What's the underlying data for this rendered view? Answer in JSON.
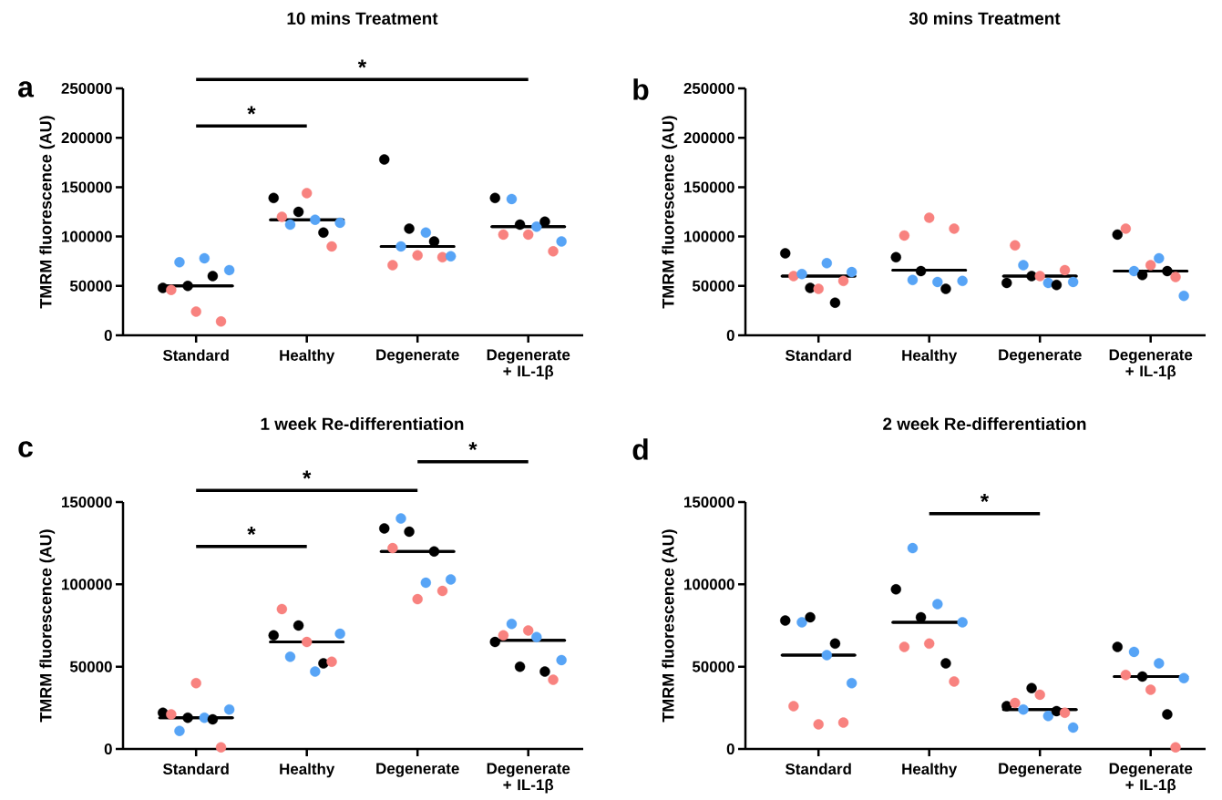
{
  "chart_data": [
    {
      "type": "scatter",
      "title": "10 mins Treatment",
      "ylabel": "TMRM fluorescence (AU)",
      "categories": [
        "Standard",
        "Healthy",
        "Degenerate",
        "Degenerate + IL-1β"
      ],
      "ylim": [
        0,
        250000
      ],
      "yticks": [
        0,
        50000,
        100000,
        150000,
        200000,
        250000
      ],
      "marker": "circle",
      "annotations": [
        "a",
        "*",
        "*"
      ],
      "series": [
        {
          "color": "#000000",
          "values": [
            48000,
            139000,
            178000,
            139000
          ]
        },
        {
          "color": "#f8827f",
          "values": [
            46000,
            120000,
            71000,
            102000
          ]
        },
        {
          "color": "#57a4f6",
          "values": [
            74000,
            112000,
            90000,
            138000
          ]
        },
        {
          "color": "#000000",
          "values": [
            50000,
            125000,
            108000,
            112000
          ]
        },
        {
          "color": "#f8827f",
          "values": [
            24000,
            144000,
            81000,
            102000
          ]
        },
        {
          "color": "#57a4f6",
          "values": [
            78000,
            117000,
            104000,
            110000
          ]
        },
        {
          "color": "#000000",
          "values": [
            60000,
            104000,
            95000,
            115000
          ]
        },
        {
          "color": "#f8827f",
          "values": [
            14000,
            90000,
            79000,
            85000
          ]
        },
        {
          "color": "#57a4f6",
          "values": [
            66000,
            114000,
            80000,
            95000
          ]
        },
        {
          "type": "box",
          "color": "#000000",
          "boxes": [
            {
              "low": 50000,
              "q1": 50000,
              "median": 50000,
              "q3": 50000,
              "high": 50000
            },
            {
              "low": 117000,
              "q1": 117000,
              "median": 117000,
              "q3": 117000,
              "high": 117000
            },
            {
              "low": 90000,
              "q1": 90000,
              "median": 90000,
              "q3": 90000,
              "high": 90000
            },
            {
              "low": 110000,
              "q1": 110000,
              "median": 110000,
              "q3": 110000,
              "high": 110000
            }
          ]
        }
      ]
    },
    {
      "type": "scatter",
      "title": "30 mins Treatment",
      "ylabel": "TMRM fluorescence (AU)",
      "categories": [
        "Standard",
        "Healthy",
        "Degenerate",
        "Degenerate + IL-1β"
      ],
      "ylim": [
        0,
        250000
      ],
      "yticks": [
        0,
        50000,
        100000,
        150000,
        200000,
        250000
      ],
      "marker": "circle",
      "annotations": [
        "b"
      ],
      "series": [
        {
          "color": "#000000",
          "values": [
            83000,
            79000,
            53000,
            102000
          ]
        },
        {
          "color": "#f8827f",
          "values": [
            60000,
            101000,
            91000,
            108000
          ]
        },
        {
          "color": "#57a4f6",
          "values": [
            62000,
            56000,
            71000,
            65000
          ]
        },
        {
          "color": "#000000",
          "values": [
            48000,
            65000,
            60000,
            61000
          ]
        },
        {
          "color": "#f8827f",
          "values": [
            47000,
            119000,
            60000,
            71000
          ]
        },
        {
          "color": "#57a4f6",
          "values": [
            73000,
            54000,
            53000,
            78000
          ]
        },
        {
          "color": "#000000",
          "values": [
            33000,
            47000,
            51000,
            65000
          ]
        },
        {
          "color": "#f8827f",
          "values": [
            55000,
            108000,
            66000,
            59000
          ]
        },
        {
          "color": "#57a4f6",
          "values": [
            64000,
            55000,
            54000,
            40000
          ]
        },
        {
          "type": "box",
          "color": "#000000",
          "boxes": [
            {
              "low": 60000,
              "q1": 60000,
              "median": 60000,
              "q3": 60000,
              "high": 60000
            },
            {
              "low": 66000,
              "q1": 66000,
              "median": 66000,
              "q3": 66000,
              "high": 66000
            },
            {
              "low": 60000,
              "q1": 60000,
              "median": 60000,
              "q3": 60000,
              "high": 60000
            },
            {
              "low": 65000,
              "q1": 65000,
              "median": 65000,
              "q3": 65000,
              "high": 65000
            }
          ]
        }
      ]
    },
    {
      "type": "scatter",
      "title": "1 week Re-differentiation",
      "ylabel": "TMRM fluorescence (AU)",
      "categories": [
        "Standard",
        "Healthy",
        "Degenerate",
        "Degenerate + IL-1β"
      ],
      "ylim": [
        0,
        150000
      ],
      "yticks": [
        0,
        50000,
        100000,
        150000
      ],
      "marker": "circle",
      "annotations": [
        "c",
        "*",
        "*",
        "*"
      ],
      "series": [
        {
          "color": "#000000",
          "values": [
            22000,
            69000,
            134000,
            65000
          ]
        },
        {
          "color": "#f8827f",
          "values": [
            21000,
            85000,
            122000,
            69000
          ]
        },
        {
          "color": "#57a4f6",
          "values": [
            11000,
            56000,
            140000,
            76000
          ]
        },
        {
          "color": "#000000",
          "values": [
            19000,
            75000,
            132000,
            50000
          ]
        },
        {
          "color": "#f8827f",
          "values": [
            40000,
            65000,
            91000,
            72000
          ]
        },
        {
          "color": "#57a4f6",
          "values": [
            19000,
            47000,
            101000,
            68000
          ]
        },
        {
          "color": "#000000",
          "values": [
            18000,
            52000,
            120000,
            47000
          ]
        },
        {
          "color": "#f8827f",
          "values": [
            1000,
            53000,
            96000,
            42000
          ]
        },
        {
          "color": "#57a4f6",
          "values": [
            24000,
            70000,
            103000,
            54000
          ]
        },
        {
          "type": "box",
          "color": "#000000",
          "boxes": [
            {
              "low": 19000,
              "q1": 19000,
              "median": 19000,
              "q3": 19000,
              "high": 19000
            },
            {
              "low": 65000,
              "q1": 65000,
              "median": 65000,
              "q3": 65000,
              "high": 65000
            },
            {
              "low": 120000,
              "q1": 120000,
              "median": 120000,
              "q3": 120000,
              "high": 120000
            },
            {
              "low": 66000,
              "q1": 66000,
              "median": 66000,
              "q3": 66000,
              "high": 66000
            }
          ]
        }
      ]
    },
    {
      "type": "scatter",
      "title": "2 week Re-differentiation",
      "ylabel": "TMRM fluorescence (AU)",
      "categories": [
        "Standard",
        "Healthy",
        "Degenerate",
        "Degenerate + IL-1β"
      ],
      "ylim": [
        0,
        150000
      ],
      "yticks": [
        0,
        50000,
        100000,
        150000
      ],
      "marker": "circle",
      "annotations": [
        "d",
        "*"
      ],
      "series": [
        {
          "color": "#000000",
          "values": [
            78000,
            97000,
            26000,
            62000
          ]
        },
        {
          "color": "#f8827f",
          "values": [
            26000,
            62000,
            28000,
            45000
          ]
        },
        {
          "color": "#57a4f6",
          "values": [
            77000,
            122000,
            24000,
            59000
          ]
        },
        {
          "color": "#000000",
          "values": [
            80000,
            80000,
            37000,
            44000
          ]
        },
        {
          "color": "#f8827f",
          "values": [
            15000,
            64000,
            33000,
            36000
          ]
        },
        {
          "color": "#57a4f6",
          "values": [
            57000,
            88000,
            20000,
            52000
          ]
        },
        {
          "color": "#000000",
          "values": [
            64000,
            52000,
            23000,
            21000
          ]
        },
        {
          "color": "#f8827f",
          "values": [
            16000,
            41000,
            22000,
            1000
          ]
        },
        {
          "color": "#57a4f6",
          "values": [
            40000,
            77000,
            13000,
            43000
          ]
        },
        {
          "type": "box",
          "color": "#000000",
          "boxes": [
            {
              "low": 57000,
              "q1": 57000,
              "median": 57000,
              "q3": 57000,
              "high": 57000
            },
            {
              "low": 77000,
              "q1": 77000,
              "median": 77000,
              "q3": 77000,
              "high": 77000
            },
            {
              "low": 24000,
              "q1": 24000,
              "median": 24000,
              "q3": 24000,
              "high": 24000
            },
            {
              "low": 44000,
              "q1": 44000,
              "median": 44000,
              "q3": 44000,
              "high": 44000
            }
          ]
        }
      ]
    }
  ]
}
